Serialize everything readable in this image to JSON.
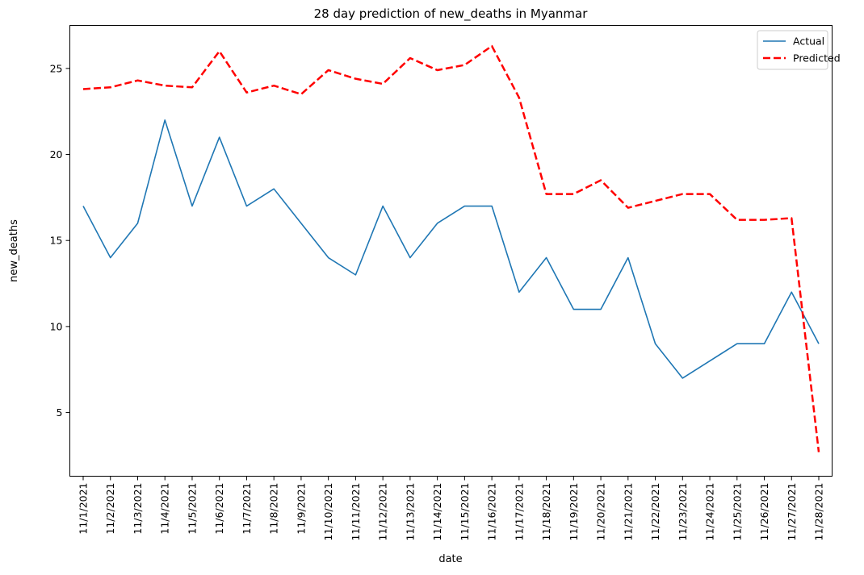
{
  "chart_data": {
    "type": "line",
    "title": "28 day prediction of new_deaths in Myanmar",
    "xlabel": "date",
    "ylabel": "new_deaths",
    "categories": [
      "11/1/2021",
      "11/2/2021",
      "11/3/2021",
      "11/4/2021",
      "11/5/2021",
      "11/6/2021",
      "11/7/2021",
      "11/8/2021",
      "11/9/2021",
      "11/10/2021",
      "11/11/2021",
      "11/12/2021",
      "11/13/2021",
      "11/14/2021",
      "11/15/2021",
      "11/16/2021",
      "11/17/2021",
      "11/18/2021",
      "11/19/2021",
      "11/20/2021",
      "11/21/2021",
      "11/22/2021",
      "11/23/2021",
      "11/24/2021",
      "11/25/2021",
      "11/26/2021",
      "11/27/2021",
      "11/28/2021"
    ],
    "ylim": [
      1.3,
      27.5
    ],
    "yticks": [
      5,
      10,
      15,
      20,
      25
    ],
    "grid": false,
    "legend_position": "top-right",
    "series": [
      {
        "name": "Actual",
        "color": "#1f77b4",
        "style": "solid",
        "values": [
          17,
          14,
          16,
          22,
          17,
          21,
          17,
          18,
          16,
          14,
          13,
          17,
          14,
          16,
          17,
          17,
          12,
          14,
          11,
          11,
          14,
          9,
          7,
          8,
          9,
          9,
          12,
          9
        ]
      },
      {
        "name": "Predicted",
        "color": "#ff0000",
        "style": "dashed",
        "values": [
          23.8,
          23.9,
          24.3,
          24.0,
          23.9,
          26.0,
          23.6,
          24.0,
          23.5,
          24.9,
          24.4,
          24.1,
          25.6,
          24.9,
          25.2,
          26.3,
          23.3,
          17.7,
          17.7,
          18.5,
          16.9,
          17.3,
          17.7,
          17.7,
          16.2,
          16.2,
          16.3,
          2.7
        ]
      }
    ]
  }
}
